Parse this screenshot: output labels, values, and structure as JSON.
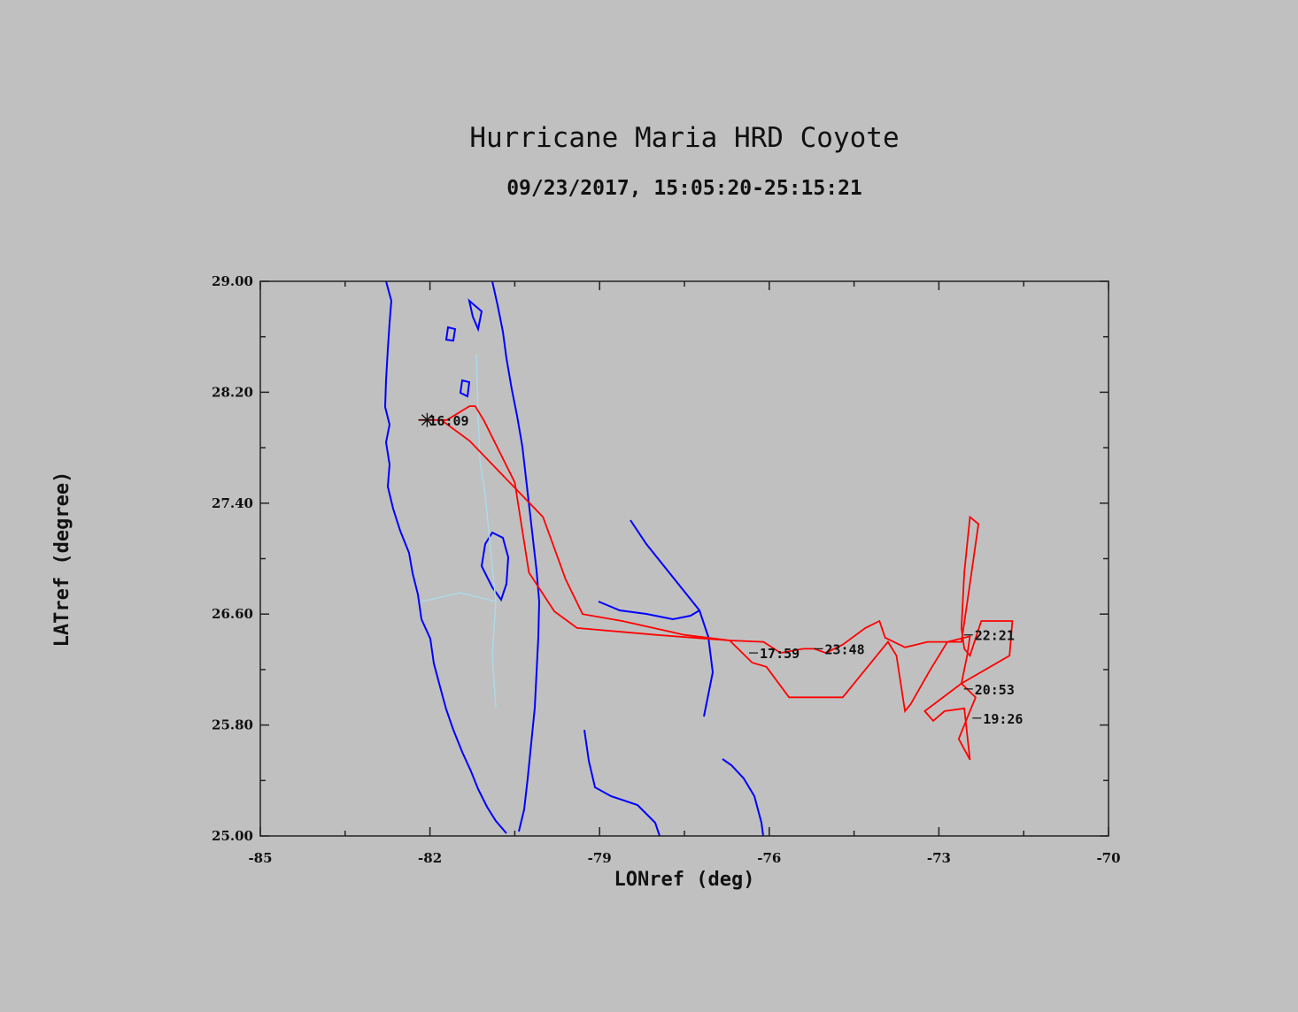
{
  "chart_data": {
    "type": "line",
    "title": "Hurricane Maria HRD Coyote",
    "subtitle": "09/23/2017, 15:05:20-25:15:21",
    "xlabel": "LONref (deg)",
    "ylabel": "LATref (degree)",
    "xlim": [
      -85,
      -70
    ],
    "ylim": [
      25.0,
      29.0
    ],
    "xticks": [
      "-85",
      "-82",
      "-79",
      "-76",
      "-73",
      "-70"
    ],
    "yticks": [
      "25.00",
      "25.80",
      "26.60",
      "27.40",
      "28.20",
      "29.00"
    ],
    "colors": {
      "track": "#ff0000",
      "coast": "#0000ff",
      "border": "#add8e6",
      "annotation": "#111111"
    },
    "track": {
      "x": [
        -82.2,
        -81.7,
        -81.3,
        -81.2,
        -81.05,
        -80.5,
        -80.25,
        -79.8,
        -79.4,
        -78.0,
        -76.7,
        -76.1,
        -75.8,
        -75.4,
        -75.2,
        -75.0,
        -74.7,
        -74.3,
        -74.05,
        -73.95,
        -73.6,
        -73.4,
        -73.2,
        -72.95,
        -72.6,
        -72.45,
        -72.3,
        -72.45,
        -72.55,
        -72.6,
        -72.55,
        -72.45,
        -72.25,
        -71.7,
        -71.75,
        -72.6,
        -73.25,
        -73.1,
        -72.9,
        -72.55,
        -72.45,
        -72.65,
        -72.45,
        -72.35,
        -72.6,
        -72.5,
        -72.45,
        -72.85,
        -73.15,
        -73.5,
        -73.6,
        -73.75,
        -73.9,
        -74.7,
        -75.65,
        -76.05,
        -76.3,
        -76.7,
        -77.5,
        -78.6,
        -79.3,
        -79.6,
        -80.0,
        -81.3,
        -81.8,
        -82.2,
        -82.2
      ],
      "y": [
        28.0,
        28.0,
        28.1,
        28.1,
        28.0,
        27.55,
        26.9,
        26.62,
        26.5,
        26.45,
        26.41,
        26.4,
        26.32,
        26.35,
        26.35,
        26.32,
        26.38,
        26.5,
        26.55,
        26.43,
        26.36,
        26.38,
        26.4,
        26.4,
        26.4,
        26.82,
        27.25,
        27.3,
        26.9,
        26.5,
        26.35,
        26.3,
        26.55,
        26.55,
        26.3,
        26.1,
        25.9,
        25.83,
        25.9,
        25.92,
        25.55,
        25.7,
        25.9,
        26.0,
        26.1,
        26.3,
        26.44,
        26.4,
        26.2,
        25.95,
        25.9,
        26.3,
        26.4,
        26.0,
        26.0,
        26.22,
        26.25,
        26.41,
        26.45,
        26.55,
        26.6,
        26.85,
        27.3,
        27.85,
        28.0,
        28.0,
        28.0
      ]
    },
    "annotations": [
      {
        "text": "16:09",
        "x": -82.05,
        "y": 28.0
      },
      {
        "text": "17:59",
        "x": -76.2,
        "y": 26.32
      },
      {
        "text": "23:48",
        "x": -75.05,
        "y": 26.35
      },
      {
        "text": "22:21",
        "x": -72.4,
        "y": 26.45
      },
      {
        "text": "20:53",
        "x": -72.4,
        "y": 26.06
      },
      {
        "text": "19:26",
        "x": -72.25,
        "y": 25.85
      }
    ],
    "grid": false,
    "legend": "none"
  }
}
